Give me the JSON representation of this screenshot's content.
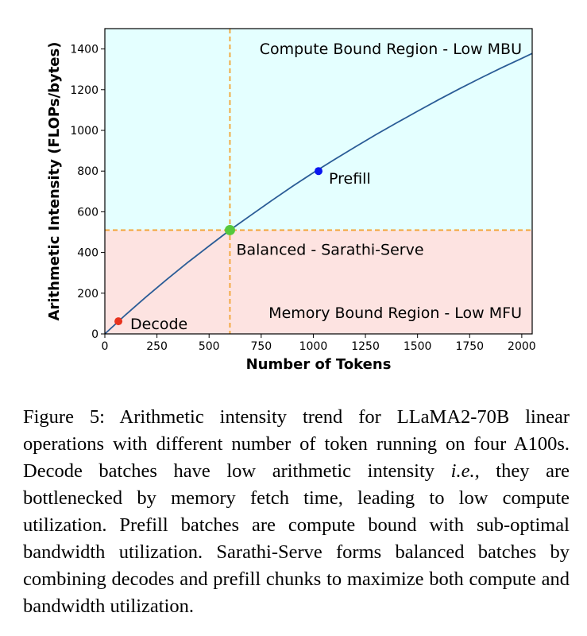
{
  "chart_data": {
    "type": "line",
    "xlabel": "Number of Tokens",
    "ylabel": "Arithmetic Intensity (FLOPs/bytes)",
    "xlim": [
      0,
      2050
    ],
    "ylim": [
      0,
      1500
    ],
    "xticks": [
      0,
      250,
      500,
      750,
      1000,
      1250,
      1500,
      1750,
      2000
    ],
    "yticks": [
      0,
      200,
      400,
      600,
      800,
      1000,
      1200,
      1400
    ],
    "grid": false,
    "series": [
      {
        "color": "#2a5c96",
        "x": [
          0,
          100,
          200,
          300,
          400,
          500,
          600,
          700,
          800,
          900,
          1000,
          1100,
          1200,
          1300,
          1400,
          1500,
          1600,
          1700,
          1800,
          1900,
          2000,
          2050
        ],
        "y": [
          0,
          94,
          184,
          270,
          353,
          432,
          510,
          583,
          655,
          725,
          792,
          856,
          918,
          979,
          1037,
          1094,
          1150,
          1204,
          1256,
          1306,
          1354,
          1378
        ]
      }
    ],
    "balance_point": {
      "x": 600,
      "y": 510
    },
    "regions": [
      {
        "label": "Compute Bound Region - Low MBU",
        "y_from": 510,
        "y_to": 1500,
        "color": "#e4ffff"
      },
      {
        "label": "Memory Bound Region - Low MFU",
        "y_from": 0,
        "y_to": 510,
        "color": "#fde3e1"
      }
    ],
    "points": [
      {
        "label": "Decode",
        "x": 65,
        "y": 62,
        "color": "#e8331e"
      },
      {
        "label": "Balanced - Sarathi-Serve",
        "x": 600,
        "y": 510,
        "color": "#55c83c"
      },
      {
        "label": "Prefill",
        "x": 1025,
        "y": 800,
        "color": "#0a16f0"
      }
    ],
    "reference_line_color": "#f2a230"
  },
  "caption": {
    "label": "Figure 5:",
    "part1": " Arithmetic intensity trend for LLaMA2-70B linear operations with different number of token running on four A100s. Decode batches have low arithmetic intensity ",
    "emphasis": "i.e.,",
    "part2": " they are bottlenecked by memory fetch time, leading to low compute utilization. Prefill batches are compute bound with sub-optimal bandwidth utilization. Sarathi-Serve forms balanced batches by combining decodes and prefill chunks to maximize both compute and bandwidth utilization."
  }
}
